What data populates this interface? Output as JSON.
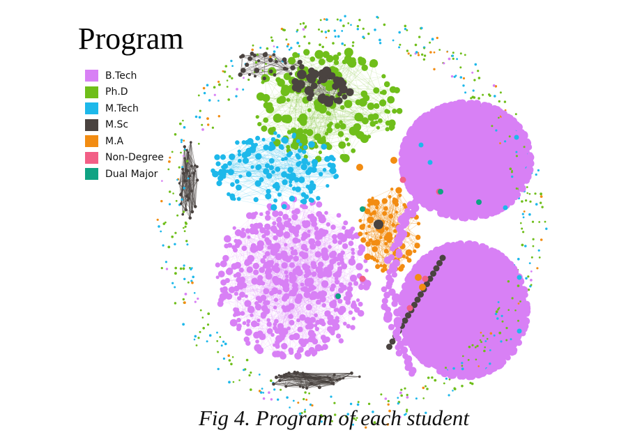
{
  "legend": {
    "title": "Program",
    "items": [
      {
        "label": "B.Tech",
        "color": "#d880f5"
      },
      {
        "label": "Ph.D",
        "color": "#6fbe1a"
      },
      {
        "label": "M.Tech",
        "color": "#1db8ea"
      },
      {
        "label": "M.Sc",
        "color": "#4a4340"
      },
      {
        "label": "M.A",
        "color": "#f28c12"
      },
      {
        "label": "Non-Degree",
        "color": "#f25f86"
      },
      {
        "label": "Dual Major",
        "color": "#0fa383"
      }
    ]
  },
  "caption": "Fig 4. Program of each student"
}
